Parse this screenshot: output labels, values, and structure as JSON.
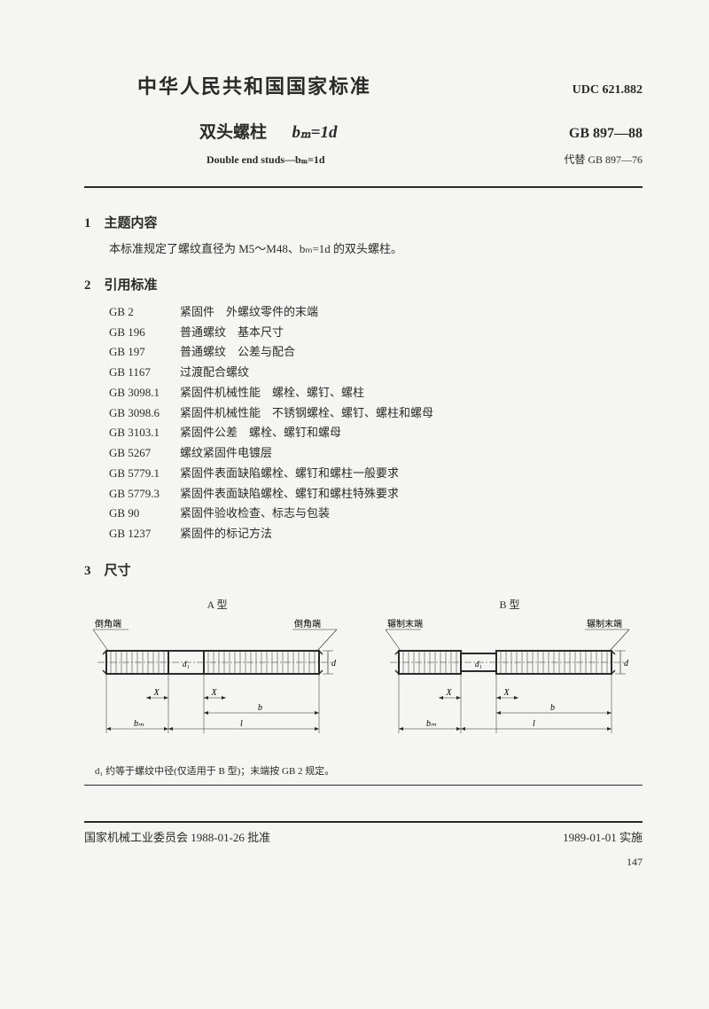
{
  "header": {
    "main_title": "中华人民共和国国家标准",
    "udc": "UDC 621.882",
    "sub_title_prefix": "双头螺柱",
    "sub_title_formula": "bₘ=1d",
    "gb_code": "GB 897—88",
    "eng_title": "Double end studs—bₘ=1d",
    "supersede": "代替 GB 897—76"
  },
  "section1": {
    "heading": "1　主题内容",
    "body": "本标准规定了螺纹直径为 M5～M48、bₘ=1d 的双头螺柱。"
  },
  "section2": {
    "heading": "2　引用标准",
    "refs": [
      {
        "code": "GB 2",
        "title": "紧固件　外螺纹零件的末端"
      },
      {
        "code": "GB 196",
        "title": "普通螺纹　基本尺寸"
      },
      {
        "code": "GB 197",
        "title": "普通螺纹　公差与配合"
      },
      {
        "code": "GB 1167",
        "title": "过渡配合螺纹"
      },
      {
        "code": "GB 3098.1",
        "title": "紧固件机械性能　螺栓、螺钉、螺柱"
      },
      {
        "code": "GB 3098.6",
        "title": "紧固件机械性能　不锈钢螺栓、螺钉、螺柱和螺母"
      },
      {
        "code": "GB 3103.1",
        "title": "紧固件公差　螺栓、螺钉和螺母"
      },
      {
        "code": "GB 5267",
        "title": "螺纹紧固件电镀层"
      },
      {
        "code": "GB 5779.1",
        "title": "紧固件表面缺陷螺栓、螺钉和螺柱一般要求"
      },
      {
        "code": "GB 5779.3",
        "title": "紧固件表面缺陷螺栓、螺钉和螺柱特殊要求"
      },
      {
        "code": "GB 90",
        "title": "紧固件验收检查、标志与包装"
      },
      {
        "code": "GB 1237",
        "title": "紧固件的标记方法"
      }
    ]
  },
  "section3": {
    "heading": "3　尺寸"
  },
  "diagrams": {
    "a": {
      "title": "A 型",
      "label_left": "倒角端",
      "label_right": "倒角端",
      "dim_x": "X",
      "dim_b": "b",
      "dim_bm": "bₘ",
      "dim_l": "l",
      "dim_d": "d",
      "dim_ds": "d₁",
      "stroke": "#2a2a2a",
      "fill": "none"
    },
    "b": {
      "title": "B 型",
      "label_left": "辗制末端",
      "label_right": "辗制末端",
      "dim_x": "X",
      "dim_b": "b",
      "dim_bm": "bₘ",
      "dim_l": "l",
      "dim_d": "d",
      "dim_ds": "d₁",
      "stroke": "#2a2a2a",
      "fill": "none"
    }
  },
  "note": "d₁ 约等于螺纹中径(仅适用于 B 型)；末端按 GB 2 规定。",
  "footer": {
    "left": "国家机械工业委员会 1988-01-26 批准",
    "right": "1989-01-01 实施",
    "page": "147"
  }
}
